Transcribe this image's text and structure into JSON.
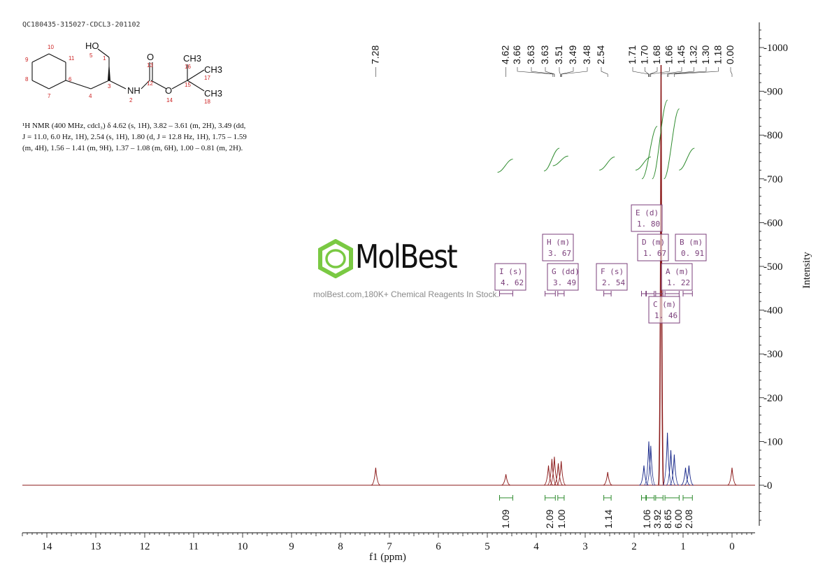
{
  "header": {
    "sample_id": "QC180435-315027-CDCL3-201102"
  },
  "nmr_description": {
    "line1": "¹H NMR (400 MHz, cdcl₃) δ 4.62 (s, 1H), 3.82 – 3.61 (m, 2H), 3.49 (dd,",
    "line2": "J = 11.0, 6.0 Hz, 1H), 2.54 (s, 1H), 1.80 (d, J = 12.8 Hz, 1H), 1.75 – 1.59",
    "line3": "(m, 4H), 1.56 – 1.41 (m, 9H), 1.37 – 1.08 (m, 6H), 1.00 – 0.81 (m, 2H)."
  },
  "structure": {
    "labels": [
      "HO",
      "NH",
      "O",
      "O",
      "CH3",
      "CH3",
      "CH3"
    ],
    "atom_numbers": [
      "1",
      "2",
      "3",
      "4",
      "5",
      "6",
      "7",
      "8",
      "9",
      "10",
      "11",
      "12",
      "13",
      "14",
      "15",
      "16",
      "17",
      "18"
    ]
  },
  "watermark": {
    "brand": "MolBest",
    "tagline": "molBest.com,180K+ Chemical Reagents In Stock."
  },
  "chart_data": {
    "type": "line",
    "xlabel": "f1 (ppm)",
    "ylabel": "Intensity",
    "xlim": [
      14.6,
      -0.5
    ],
    "x_reversed": true,
    "ylim": [
      -100,
      1050
    ],
    "x_ticks": [
      "14",
      "13",
      "12",
      "11",
      "10",
      "9",
      "8",
      "7",
      "6",
      "5",
      "4",
      "3",
      "2",
      "1",
      "0"
    ],
    "y_ticks": [
      "0",
      "100",
      "200",
      "300",
      "400",
      "500",
      "600",
      "700",
      "800",
      "900",
      "1000"
    ],
    "peak_labels": [
      "7.28",
      "4.62",
      "3.66",
      "3.63",
      "3.63",
      "3.51",
      "3.49",
      "3.48",
      "2.54",
      "1.71",
      "1.70",
      "1.68",
      "1.66",
      "1.45",
      "1.32",
      "1.30",
      "1.18",
      "0.00"
    ],
    "peaks": [
      {
        "ppm": 7.28,
        "height": 40
      },
      {
        "ppm": 4.62,
        "height": 25
      },
      {
        "ppm": 3.75,
        "height": 45
      },
      {
        "ppm": 3.68,
        "height": 60
      },
      {
        "ppm": 3.63,
        "height": 65
      },
      {
        "ppm": 3.55,
        "height": 50
      },
      {
        "ppm": 3.49,
        "height": 55
      },
      {
        "ppm": 2.54,
        "height": 30
      },
      {
        "ppm": 1.8,
        "height": 45
      },
      {
        "ppm": 1.7,
        "height": 100
      },
      {
        "ppm": 1.66,
        "height": 90
      },
      {
        "ppm": 1.45,
        "height": 960
      },
      {
        "ppm": 1.32,
        "height": 120
      },
      {
        "ppm": 1.25,
        "height": 80
      },
      {
        "ppm": 1.18,
        "height": 70
      },
      {
        "ppm": 0.95,
        "height": 40
      },
      {
        "ppm": 0.88,
        "height": 45
      },
      {
        "ppm": 0.0,
        "height": 40
      }
    ],
    "multiplets": [
      {
        "letter": "I",
        "type": "s",
        "shift": "4.62"
      },
      {
        "letter": "H",
        "type": "m",
        "shift": "3.67"
      },
      {
        "letter": "G",
        "type": "dd",
        "shift": "3.49"
      },
      {
        "letter": "F",
        "type": "s",
        "shift": "2.54"
      },
      {
        "letter": "E",
        "type": "d",
        "shift": "1.80"
      },
      {
        "letter": "D",
        "type": "m",
        "shift": "1.67"
      },
      {
        "letter": "C",
        "type": "m",
        "shift": "1.46"
      },
      {
        "letter": "A",
        "type": "m",
        "shift": "1.22"
      },
      {
        "letter": "B",
        "type": "m",
        "shift": "0.91"
      }
    ],
    "integrals": [
      {
        "from": 4.75,
        "to": 4.48,
        "value": "1.09"
      },
      {
        "from": 3.82,
        "to": 3.61,
        "value": "2.09"
      },
      {
        "from": 3.56,
        "to": 3.43,
        "value": "1.00"
      },
      {
        "from": 2.62,
        "to": 2.47,
        "value": "1.14"
      },
      {
        "from": 1.85,
        "to": 1.76,
        "value": "1.06"
      },
      {
        "from": 1.75,
        "to": 1.59,
        "value": "3.92"
      },
      {
        "from": 1.56,
        "to": 1.41,
        "value": "8.65"
      },
      {
        "from": 1.37,
        "to": 1.08,
        "value": "6.00"
      },
      {
        "from": 1.0,
        "to": 0.81,
        "value": "2.08"
      }
    ],
    "colors": {
      "spectrum": "#8b1a1a",
      "spectrum_dense": "#1a2a8b",
      "integral": "#2e8b2e",
      "annotation": "#7b3f7b",
      "axis": "#111111",
      "logo": "#7ac943"
    }
  }
}
